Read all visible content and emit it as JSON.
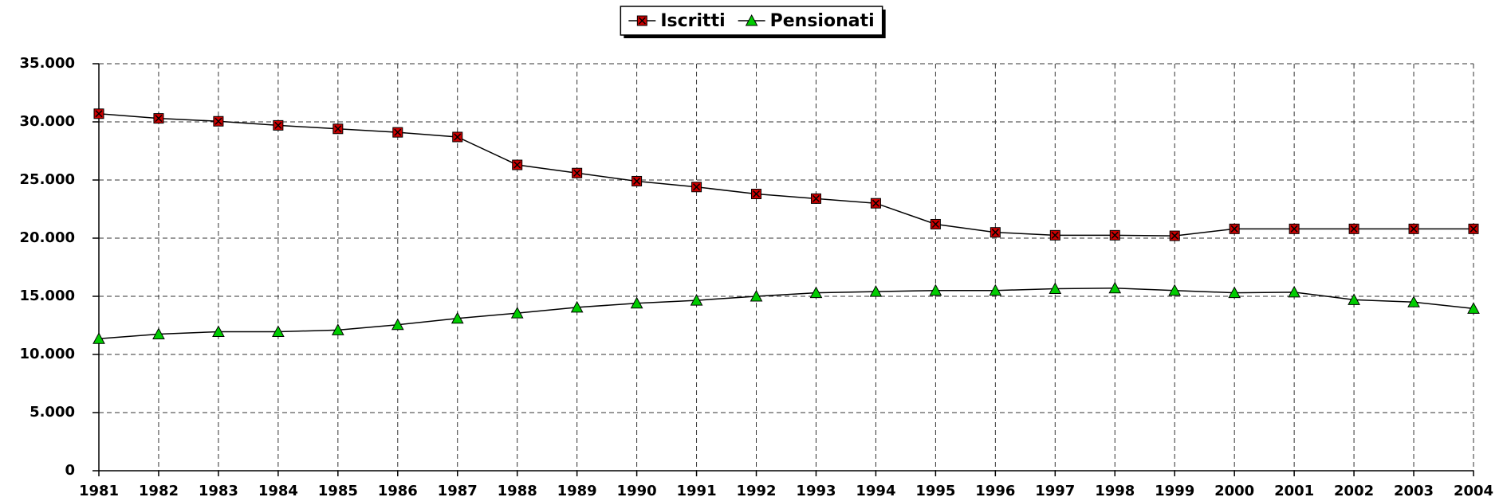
{
  "chart_data": {
    "type": "line",
    "categories": [
      "1981",
      "1982",
      "1983",
      "1984",
      "1985",
      "1986",
      "1987",
      "1988",
      "1989",
      "1990",
      "1991",
      "1992",
      "1993",
      "1994",
      "1995",
      "1996",
      "1997",
      "1998",
      "1999",
      "2000",
      "2001",
      "2002",
      "2003",
      "2004"
    ],
    "series": [
      {
        "name": "Iscritti",
        "color": "#cc0000",
        "marker": "square",
        "values": [
          30700,
          30300,
          30050,
          29700,
          29400,
          29100,
          28700,
          26300,
          25600,
          24900,
          24400,
          23800,
          23400,
          23000,
          21200,
          20500,
          20250,
          20250,
          20200,
          20800,
          20800,
          20800,
          20800,
          20800
        ]
      },
      {
        "name": "Pensionati",
        "color": "#00cc00",
        "marker": "triangle",
        "values": [
          11350,
          11750,
          11950,
          11950,
          12100,
          12550,
          13100,
          13550,
          14050,
          14400,
          14650,
          15000,
          15300,
          15400,
          15500,
          15500,
          15650,
          15700,
          15500,
          15300,
          15350,
          14700,
          14500,
          13950
        ]
      }
    ],
    "ylim": [
      0,
      35000
    ],
    "yticks": [
      0,
      {
        "value": 5000,
        "label": "5.000"
      },
      {
        "value": 10000,
        "label": "10.000"
      },
      {
        "value": 15000,
        "label": "15.000"
      },
      {
        "value": 20000,
        "label": "20.000"
      },
      {
        "value": 25000,
        "label": "25.000"
      },
      {
        "value": 30000,
        "label": "30.000"
      },
      {
        "value": 35000,
        "label": "35.000"
      }
    ],
    "grid": true,
    "legend": "top"
  }
}
